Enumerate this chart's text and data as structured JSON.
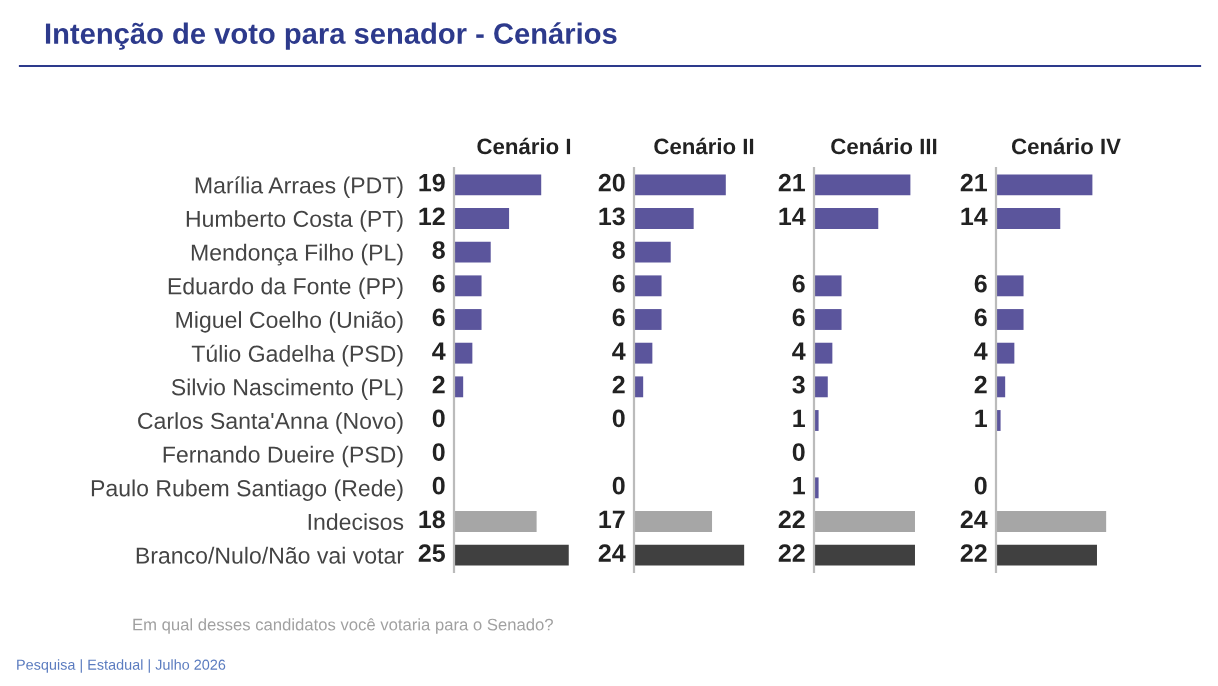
{
  "chart_data": [
    {
      "type": "other",
      "title": "Intenção de voto para senador - Cenários",
      "annotations": [
        "Em qual desses candidatos você votaria para o Senado?",
        "Pesquisa | Estadual | Julho 2026"
      ]
    },
    {
      "type": "bar",
      "orientation": "horizontal",
      "title": "Cenário I",
      "tick_labels": "y",
      "data_labels": true,
      "categories": [
        "Marília Arraes (PDT)",
        "Humberto Costa (PT)",
        "Mendonça Filho (PL)",
        "Eduardo da Fonte (PP)",
        "Miguel Coelho (União)",
        "Túlio Gadelha (PSD)",
        "Silvio Nascimento (PL)",
        "Carlos Santa'Anna (Novo)",
        "Fernando Dueire (PSD)",
        "Paulo Rubem Santiago (Rede)",
        "Indecisos",
        "Branco/Nulo/Não vai votar"
      ],
      "values": [
        19,
        12,
        8,
        6,
        6,
        4,
        2,
        0,
        0,
        0,
        18,
        25
      ],
      "colors": [
        "#5b559c",
        "#5b559c",
        "#5b559c",
        "#5b559c",
        "#5b559c",
        "#5b559c",
        "#5b559c",
        "#5b559c",
        "#5b559c",
        "#5b559c",
        "#a6a6a6",
        "#404040"
      ]
    },
    {
      "type": "bar",
      "orientation": "horizontal",
      "title": "Cenário II",
      "tick_labels": false,
      "data_labels": true,
      "values": [
        20,
        13,
        8,
        6,
        6,
        4,
        2,
        0,
        null,
        0,
        17,
        24
      ],
      "colors": [
        "#5b559c",
        "#5b559c",
        "#5b559c",
        "#5b559c",
        "#5b559c",
        "#5b559c",
        "#5b559c",
        "#5b559c",
        "#5b559c",
        "#5b559c",
        "#a6a6a6",
        "#404040"
      ]
    },
    {
      "type": "bar",
      "orientation": "horizontal",
      "title": "Cenário III",
      "tick_labels": false,
      "data_labels": true,
      "values": [
        21,
        14,
        null,
        6,
        6,
        4,
        3,
        1,
        0,
        1,
        22,
        22
      ],
      "colors": [
        "#5b559c",
        "#5b559c",
        "#5b559c",
        "#5b559c",
        "#5b559c",
        "#5b559c",
        "#5b559c",
        "#5b559c",
        "#5b559c",
        "#5b559c",
        "#a6a6a6",
        "#404040"
      ]
    },
    {
      "type": "bar",
      "orientation": "horizontal",
      "title": "Cenário IV",
      "tick_labels": false,
      "data_labels": true,
      "values": [
        21,
        14,
        null,
        6,
        6,
        4,
        2,
        1,
        null,
        0,
        24,
        22
      ],
      "colors": [
        "#5b559c",
        "#5b559c",
        "#5b559c",
        "#5b559c",
        "#5b559c",
        "#5b559c",
        "#5b559c",
        "#5b559c",
        "#5b559c",
        "#5b559c",
        "#a6a6a6",
        "#404040"
      ]
    }
  ]
}
